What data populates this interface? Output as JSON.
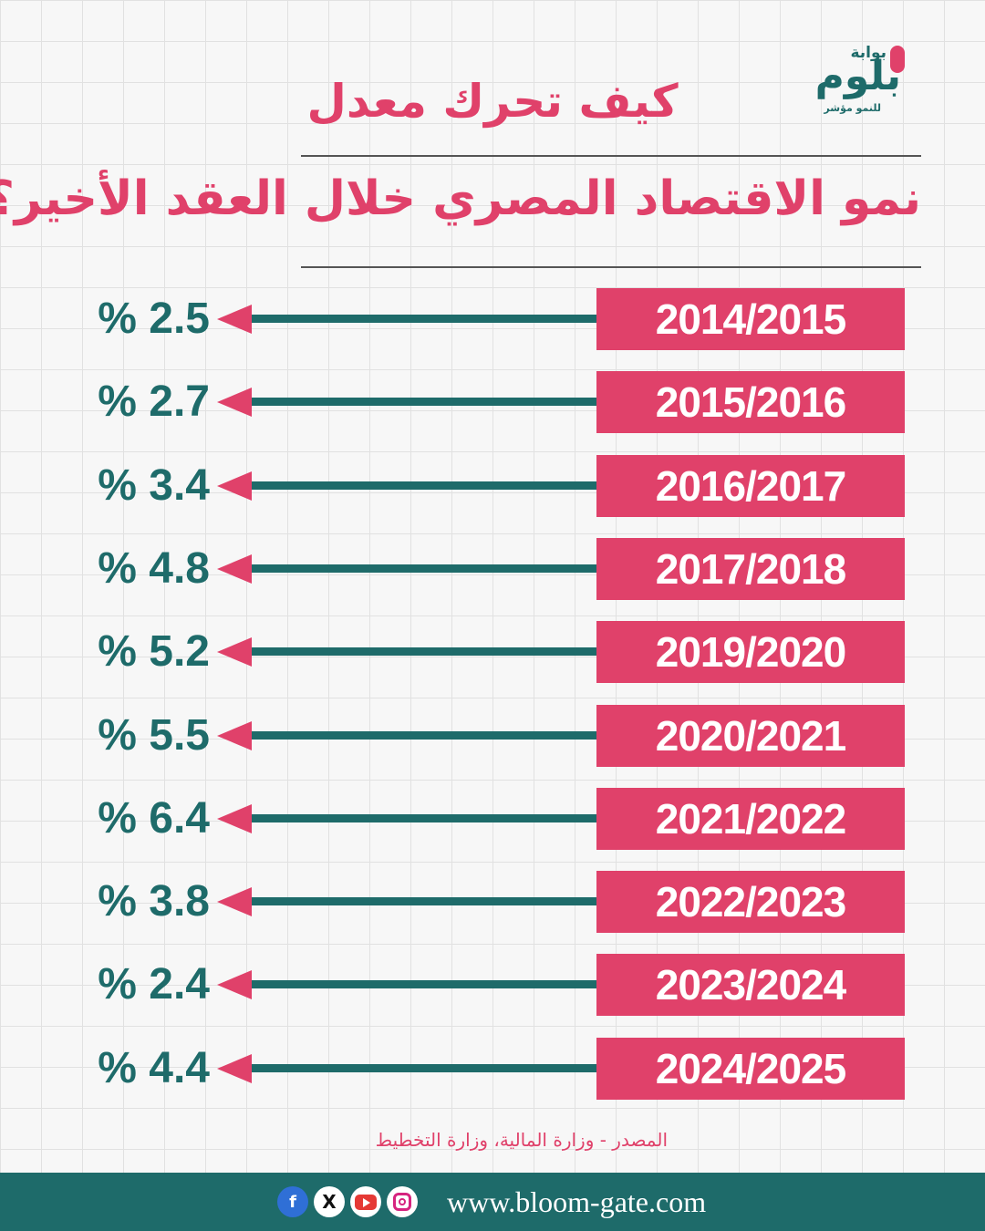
{
  "brand": {
    "logo_top": "بوابة",
    "logo_main": "بلوم",
    "logo_sub": "للنمو مؤشر"
  },
  "title": {
    "line1": "كيف تحرك معدل",
    "line2": "نمو الاقتصاد المصري خلال العقد الأخير؟"
  },
  "colors": {
    "accent_pink": "#e0416a",
    "accent_teal": "#1e6b6a"
  },
  "rows": [
    {
      "year": "2014/2015",
      "value": "% 2.5"
    },
    {
      "year": "2015/2016",
      "value": "% 2.7"
    },
    {
      "year": "2016/2017",
      "value": "% 3.4"
    },
    {
      "year": "2017/2018",
      "value": "% 4.8"
    },
    {
      "year": "2019/2020",
      "value": "% 5.2"
    },
    {
      "year": "2020/2021",
      "value": "% 5.5"
    },
    {
      "year": "2021/2022",
      "value": "% 6.4"
    },
    {
      "year": "2022/2023",
      "value": "% 3.8"
    },
    {
      "year": "2023/2024",
      "value": "% 2.4"
    },
    {
      "year": "2024/2025",
      "value": "% 4.4"
    }
  ],
  "source": "المصدر - وزارة المالية، وزارة التخطيط",
  "footer": {
    "website": "www.bloom-gate.com",
    "icons": [
      "facebook-icon",
      "x-icon",
      "youtube-icon",
      "instagram-icon"
    ]
  }
}
